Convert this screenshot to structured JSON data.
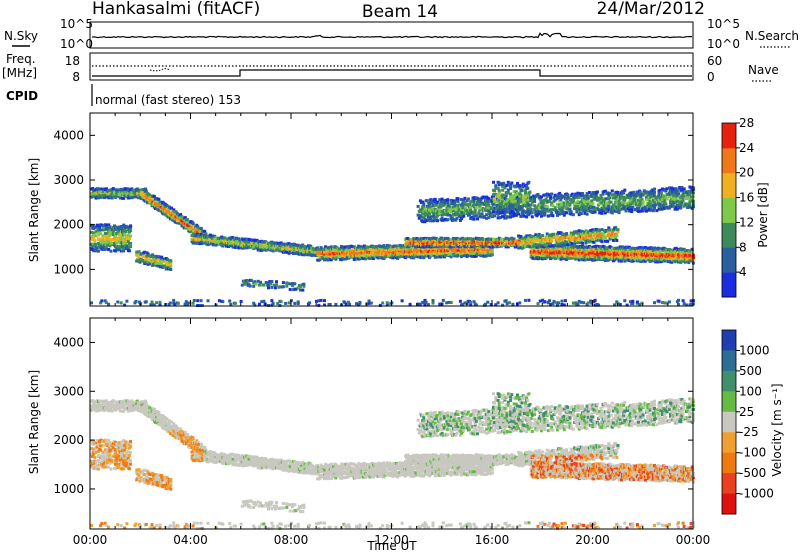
{
  "header": {
    "station": "Hankasalmi (fitACF)",
    "beam": "Beam 14",
    "date": "24/Mar/2012"
  },
  "status": {
    "nsky_label": "N.Sky",
    "nsearch_label": "N.Search",
    "exp_hi": "10^5",
    "exp_lo": "10^0",
    "freq_label": "Freq.",
    "freq_unit": "[MHz]",
    "freq_ticks": [
      "18",
      "8"
    ],
    "nave_label": "Nave",
    "nave_ticks": [
      "60",
      "0"
    ],
    "cpid_label": "CPID",
    "cpid_text": "normal (fast stereo) 153"
  },
  "chart_data": [
    {
      "type": "heatmap",
      "name": "power",
      "ylabel": "Slant Range [km]",
      "xlabel": "",
      "ylim": [
        180,
        4500
      ],
      "yticks": [
        "1000",
        "2000",
        "3000",
        "4000"
      ],
      "colorbar": {
        "label": "Power [dB]",
        "ticks": [
          "4",
          "8",
          "12",
          "16",
          "20",
          "24",
          "28"
        ],
        "colors": [
          "#1a2ee0",
          "#2a5fa0",
          "#3f8a5a",
          "#7ec84a",
          "#f0b020",
          "#f07818",
          "#e82010"
        ]
      }
    },
    {
      "type": "heatmap",
      "name": "velocity",
      "ylabel": "Slant Range [km]",
      "xlabel": "Time UT",
      "ylim": [
        180,
        4500
      ],
      "yticks": [
        "1000",
        "2000",
        "3000",
        "4000"
      ],
      "xticks": [
        "00:00",
        "04:00",
        "08:00",
        "12:00",
        "16:00",
        "20:00",
        "00:00"
      ],
      "colorbar": {
        "label": "Velocity [m s⁻¹]",
        "ticks": [
          "1000",
          "500",
          "100",
          "25",
          "-25",
          "-100",
          "-500",
          "-1000"
        ],
        "colors": [
          "#1f3fb0",
          "#2e6e96",
          "#3f8f6a",
          "#66bb44",
          "#c8c8c0",
          "#f0a030",
          "#f07a10",
          "#e84020",
          "#e01010"
        ]
      }
    }
  ]
}
